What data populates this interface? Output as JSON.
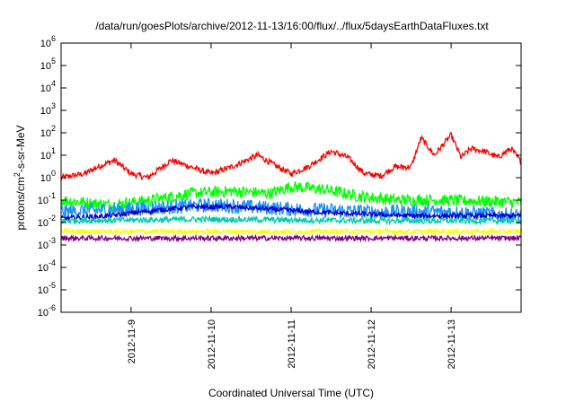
{
  "chart_data": {
    "type": "line",
    "title": "/data/run/goesPlots/archive/2012-11-13/16:00/flux/../flux/5daysEarthDataFluxes.txt",
    "xlabel": "Coordinated Universal Time (UTC)",
    "ylabel": {
      "base": "protons/cm",
      "sup": "2",
      "rest": "-s-sr-MeV"
    },
    "yscale": "log",
    "ylim": [
      1e-06,
      1000000.0
    ],
    "xlim": [
      "2012-11-08 03:00",
      "2012-11-13 21:00"
    ],
    "grid": false,
    "legend": "none",
    "x_ticks": [
      {
        "label": "2012-11-9",
        "day": 1
      },
      {
        "label": "2012-11-10",
        "day": 2
      },
      {
        "label": "2012-11-11",
        "day": 3
      },
      {
        "label": "2012-11-12",
        "day": 4
      },
      {
        "label": "2012-11-13",
        "day": 5
      }
    ],
    "y_ticks": [
      {
        "exp": -6
      },
      {
        "exp": -5
      },
      {
        "exp": -4
      },
      {
        "exp": -3
      },
      {
        "exp": -2
      },
      {
        "exp": -1
      },
      {
        "exp": 0
      },
      {
        "exp": 1
      },
      {
        "exp": 2
      },
      {
        "exp": 3
      },
      {
        "exp": 4
      },
      {
        "exp": 5
      },
      {
        "exp": 6
      }
    ],
    "series": [
      {
        "color": "#ff0000",
        "noise": 0.06,
        "x": [
          "2012-11-08 03:00",
          "2012-11-08 10:00",
          "2012-11-08 14:00",
          "2012-11-08 19:00",
          "2012-11-09 00:00",
          "2012-11-09 05:00",
          "2012-11-09 12:00",
          "2012-11-09 18:00",
          "2012-11-10 00:00",
          "2012-11-10 06:00",
          "2012-11-10 14:00",
          "2012-11-10 20:00",
          "2012-11-11 00:00",
          "2012-11-11 05:00",
          "2012-11-11 12:00",
          "2012-11-11 17:00",
          "2012-11-11 22:00",
          "2012-11-12 03:00",
          "2012-11-12 07:00",
          "2012-11-12 12:00",
          "2012-11-12 15:00",
          "2012-11-12 19:00",
          "2012-11-13 00:00",
          "2012-11-13 03:00",
          "2012-11-13 06:00",
          "2012-11-13 10:00",
          "2012-11-13 14:00",
          "2012-11-13 18:00",
          "2012-11-13 21:00"
        ],
        "y": [
          1.0,
          1.5,
          3.0,
          6.0,
          1.5,
          1.0,
          6.0,
          3.0,
          1.5,
          3.0,
          10,
          3.0,
          1.5,
          3.0,
          15,
          8.0,
          1.5,
          1.2,
          3.0,
          3.0,
          60,
          10,
          80,
          8.0,
          20,
          15,
          8.0,
          20,
          5.0
        ]
      },
      {
        "color": "#00ff00",
        "noise": 0.12,
        "x": [
          "2012-11-08 03:00",
          "2012-11-08 18:00",
          "2012-11-09 06:00",
          "2012-11-09 18:00",
          "2012-11-10 06:00",
          "2012-11-10 18:00",
          "2012-11-11 00:00",
          "2012-11-11 10:00",
          "2012-11-11 20:00",
          "2012-11-12 08:00",
          "2012-11-12 20:00",
          "2012-11-13 21:00"
        ],
        "y": [
          0.1,
          0.06,
          0.1,
          0.2,
          0.25,
          0.2,
          0.4,
          0.3,
          0.15,
          0.1,
          0.1,
          0.08
        ]
      },
      {
        "color": "#1e90ff",
        "noise": 0.15,
        "x": [
          "2012-11-08 03:00",
          "2012-11-09 00:00",
          "2012-11-10 00:00",
          "2012-11-11 00:00",
          "2012-11-12 00:00",
          "2012-11-13 00:00",
          "2012-11-13 21:00"
        ],
        "y": [
          0.03,
          0.04,
          0.06,
          0.04,
          0.03,
          0.03,
          0.02
        ]
      },
      {
        "color": "#0000cd",
        "noise": 0.05,
        "x": [
          "2012-11-08 03:00",
          "2012-11-08 18:00",
          "2012-11-09 03:00",
          "2012-11-09 18:00",
          "2012-11-10 06:00",
          "2012-11-10 18:00",
          "2012-11-11 06:00",
          "2012-11-11 18:00",
          "2012-11-12 12:00",
          "2012-11-13 21:00"
        ],
        "y": [
          0.015,
          0.02,
          0.03,
          0.05,
          0.05,
          0.04,
          0.03,
          0.025,
          0.02,
          0.02
        ]
      },
      {
        "color": "#00ccaa",
        "noise": 0.06,
        "x": [
          "2012-11-08 03:00",
          "2012-11-10 00:00",
          "2012-11-12 00:00",
          "2012-11-13 21:00"
        ],
        "y": [
          0.012,
          0.014,
          0.012,
          0.012
        ]
      },
      {
        "color": "#ffff00",
        "noise": 0.05,
        "x": [
          "2012-11-08 03:00",
          "2012-11-13 21:00"
        ],
        "y": [
          0.004,
          0.004
        ]
      },
      {
        "color": "#800080",
        "noise": 0.05,
        "x": [
          "2012-11-08 03:00",
          "2012-11-13 21:00"
        ],
        "y": [
          0.002,
          0.002
        ]
      }
    ]
  }
}
